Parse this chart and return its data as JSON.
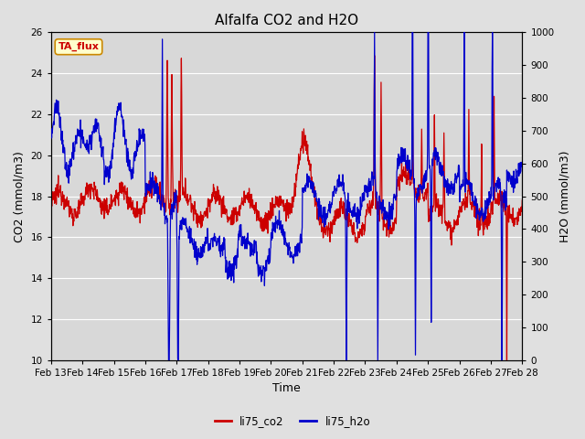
{
  "title": "Alfalfa CO2 and H2O",
  "xlabel": "Time",
  "ylabel_left": "CO2 (mmol/m3)",
  "ylabel_right": "H2O (mmol/m3)",
  "ylim_left": [
    10,
    26
  ],
  "ylim_right": [
    0,
    1000
  ],
  "yticks_left": [
    10,
    12,
    14,
    16,
    18,
    20,
    22,
    24,
    26
  ],
  "yticks_right": [
    0,
    100,
    200,
    300,
    400,
    500,
    600,
    700,
    800,
    900,
    1000
  ],
  "xtick_labels": [
    "Feb 13",
    "Feb 14",
    "Feb 15",
    "Feb 16",
    "Feb 17",
    "Feb 18",
    "Feb 19",
    "Feb 20",
    "Feb 21",
    "Feb 22",
    "Feb 23",
    "Feb 24",
    "Feb 25",
    "Feb 26",
    "Feb 27",
    "Feb 28"
  ],
  "color_co2": "#cc0000",
  "color_h2o": "#0000cc",
  "legend_label_co2": "li75_co2",
  "legend_label_h2o": "li75_h2o",
  "annotation_text": "TA_flux",
  "annotation_bbox_facecolor": "#ffffcc",
  "annotation_bbox_edgecolor": "#cc8800",
  "bg_color": "#e0e0e0",
  "plot_bg_color": "#d8d8d8",
  "grid_color": "#ffffff",
  "title_fontsize": 11,
  "axis_label_fontsize": 9,
  "tick_fontsize": 7.5,
  "linewidth_co2": 0.9,
  "linewidth_h2o": 0.9
}
